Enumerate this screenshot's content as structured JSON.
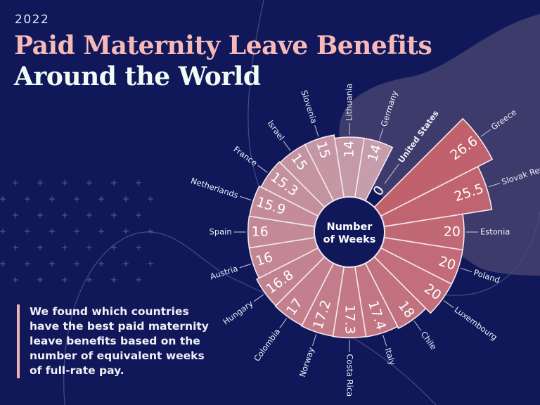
{
  "header": {
    "year": "2022",
    "title_line1": "Paid Maternity Leave Benefits",
    "title_line2": "Around the World"
  },
  "description": "We found which countries have the best paid maternity leave benefits based on the number of equivalent weeks of full-rate pay.",
  "colors": {
    "background": "#10185a",
    "title_accent": "#f7b9b8",
    "bar_high": "#c1616e",
    "bar_low": "#c59dab",
    "center": "#10185a"
  },
  "chart_data": {
    "type": "polar-bar",
    "center_label": [
      "Number",
      "of Weeks"
    ],
    "unit": "weeks",
    "categories": [
      "Lithuania",
      "Germany",
      "United States",
      "Greece",
      "Slovak Republic",
      "Estonia",
      "Poland",
      "Luxembourg",
      "Chile",
      "Italy",
      "Costa Rica",
      "Norway",
      "Colombia",
      "Hungary",
      "Austria",
      "Spain",
      "Netherlands",
      "France",
      "Israel",
      "Slovenia"
    ],
    "values": [
      14,
      14,
      0,
      26.6,
      25.5,
      20,
      20,
      20,
      18,
      17.4,
      17.3,
      17.2,
      17,
      16.8,
      16,
      16,
      15.9,
      15.3,
      15,
      15
    ],
    "value_labels": [
      "14",
      "14",
      "0",
      "26.6",
      "25.5",
      "20",
      "20",
      "20",
      "18",
      "17.4",
      "17.3",
      "17.2",
      "17",
      "16.8",
      "16",
      "16",
      "15.9",
      "15.3",
      "15",
      "15"
    ],
    "highlighted": "United States"
  }
}
